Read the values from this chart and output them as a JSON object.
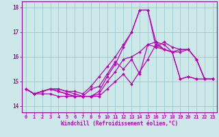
{
  "xlabel": "Windchill (Refroidissement éolien,°C)",
  "xlim_min": -0.5,
  "xlim_max": 23.5,
  "ylim_min": 13.75,
  "ylim_max": 18.25,
  "yticks": [
    14,
    15,
    16,
    17,
    18
  ],
  "xticks": [
    0,
    1,
    2,
    3,
    4,
    5,
    6,
    7,
    8,
    9,
    10,
    11,
    12,
    13,
    14,
    15,
    16,
    17,
    18,
    19,
    20,
    21,
    22,
    23
  ],
  "bg_color": "#cce8e8",
  "grid_color": "#99cccc",
  "line_color": "#bb00bb",
  "line_width": 0.9,
  "marker": "D",
  "marker_size": 2.0,
  "series": [
    [
      14.7,
      14.5,
      14.6,
      14.7,
      14.7,
      14.6,
      14.5,
      14.4,
      14.7,
      14.8,
      15.3,
      15.8,
      15.5,
      15.9,
      15.3,
      16.5,
      16.4,
      16.3,
      16.2,
      15.1,
      15.2,
      15.1,
      15.1,
      15.1
    ],
    [
      14.7,
      14.5,
      14.6,
      14.7,
      14.6,
      14.5,
      14.4,
      14.4,
      14.4,
      14.5,
      15.0,
      15.4,
      15.9,
      16.0,
      16.2,
      16.5,
      16.6,
      16.3,
      16.2,
      16.3,
      16.3,
      15.9,
      15.1,
      15.1
    ],
    [
      14.7,
      14.5,
      14.6,
      14.7,
      14.6,
      14.5,
      14.4,
      14.4,
      14.4,
      14.6,
      15.2,
      15.7,
      16.4,
      17.0,
      17.9,
      17.9,
      16.6,
      16.5,
      16.2,
      16.2,
      16.3,
      15.9,
      15.1,
      15.1
    ],
    [
      14.7,
      14.5,
      14.5,
      14.5,
      14.4,
      14.4,
      14.4,
      14.4,
      14.4,
      14.4,
      14.7,
      15.0,
      15.3,
      14.9,
      15.4,
      15.9,
      16.5,
      16.3,
      16.2,
      15.1,
      15.2,
      15.1,
      15.1,
      15.1
    ],
    [
      14.7,
      14.5,
      14.6,
      14.7,
      14.7,
      14.6,
      14.6,
      14.5,
      14.8,
      15.2,
      15.6,
      16.0,
      16.5,
      17.0,
      17.9,
      17.9,
      16.4,
      16.6,
      16.4,
      16.3,
      16.3,
      15.9,
      15.1,
      15.1
    ]
  ],
  "spine_color": "#9900aa",
  "tick_label_fontsize": 5.0,
  "xlabel_fontsize": 5.5,
  "ytick_label_fontsize": 5.5
}
